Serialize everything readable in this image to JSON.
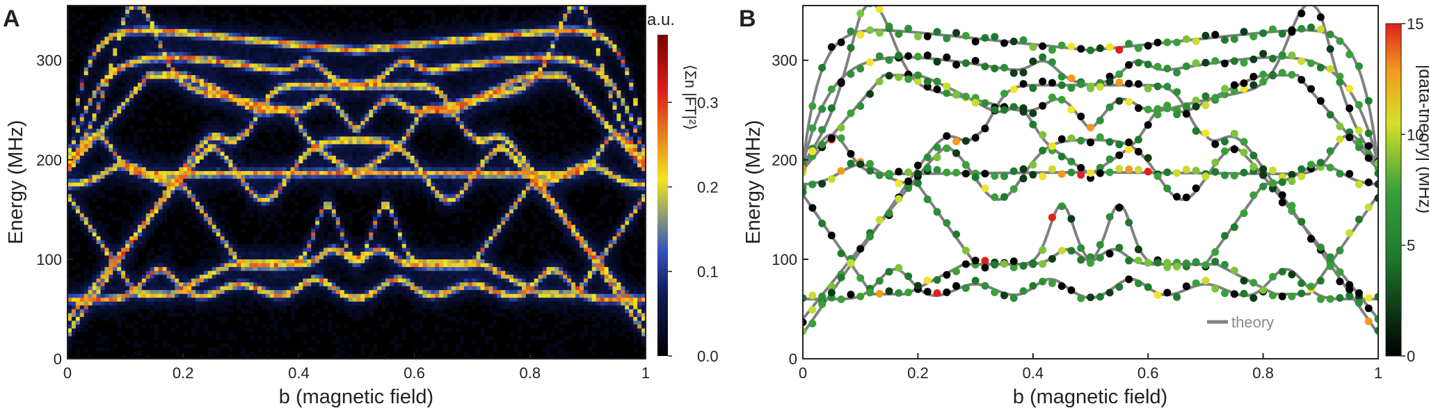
{
  "chart_data": [
    {
      "panel_label": "A",
      "type": "heatmap",
      "xlabel": "b (magnetic field)",
      "ylabel": "Energy (MHz)",
      "xlim": [
        0,
        1
      ],
      "ylim": [
        0,
        355
      ],
      "xticks": [
        "0",
        "0.2",
        "0.4",
        "0.6",
        "0.8",
        "1"
      ],
      "yticks": [
        "0",
        "100",
        "200",
        "300"
      ],
      "colorbar": {
        "unit_label": "a.u.",
        "label": "⟨Σn |FT|²⟩",
        "range": [
          0,
          0.38
        ],
        "ticks": [
          "0.0",
          "0.1",
          "0.2",
          "0.3"
        ],
        "colors": [
          "#000000",
          "#1a2a8a",
          "#3d5cc8",
          "#f2e51e",
          "#e0201a",
          "#7a0000"
        ]
      }
    },
    {
      "panel_label": "B",
      "type": "scatter",
      "xlabel": "b (magnetic field)",
      "ylabel": "Energy (MHz)",
      "xlim": [
        0,
        1
      ],
      "ylim": [
        0,
        355
      ],
      "xticks": [
        "0",
        "0.2",
        "0.4",
        "0.6",
        "0.8",
        "1"
      ],
      "yticks": [
        "0",
        "100",
        "200",
        "300"
      ],
      "legend": {
        "label": "theory",
        "color": "#808080",
        "placement": "bottom-right"
      },
      "colorbar": {
        "label": "|data-theory| (MHz)",
        "range": [
          0,
          15
        ],
        "ticks": [
          "0",
          "5",
          "10",
          "15"
        ],
        "colors": [
          "#000000",
          "#1f7a2e",
          "#3aa03a",
          "#d6e02a",
          "#f29a1c",
          "#e0201a"
        ]
      }
    }
  ]
}
